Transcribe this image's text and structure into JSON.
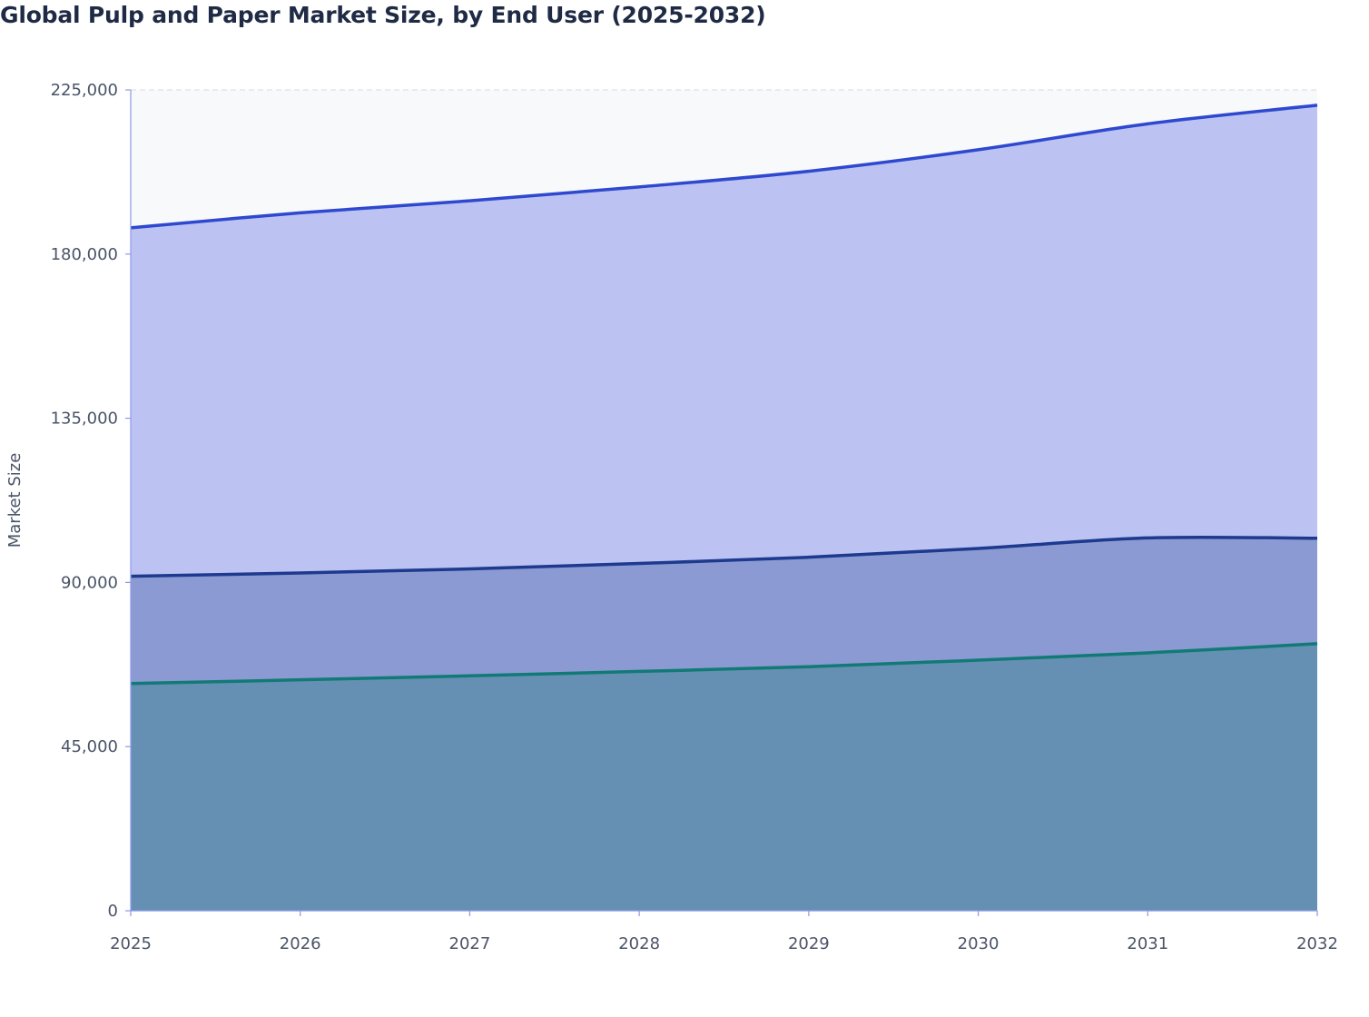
{
  "chart_data": {
    "type": "area",
    "stacked": true,
    "title": "Global Pulp and Paper Market Size, by End User (2025-2032)",
    "xlabel": "",
    "ylabel": "Market Size",
    "x": [
      "2025",
      "2026",
      "2027",
      "2028",
      "2029",
      "2030",
      "2031",
      "2032"
    ],
    "ylim": [
      0,
      225000
    ],
    "yticks": [
      0,
      45000,
      90000,
      135000,
      180000,
      225000
    ],
    "ytick_labels": [
      "0",
      "45,000",
      "90,000",
      "135,000",
      "180,000",
      "225,000"
    ],
    "grid": true,
    "legend": "none",
    "series": [
      {
        "values": [
          62300,
          63300,
          64400,
          65600,
          66900,
          68700,
          70700,
          73200
        ],
        "line_color": "#127a76",
        "fill_color": "#6590b3"
      },
      {
        "values": [
          29400,
          29300,
          29300,
          29600,
          30000,
          30600,
          31500,
          28900
        ],
        "line_color": "#1d3a8f",
        "fill_color": "#8b9ad2"
      },
      {
        "values": [
          95500,
          98700,
          100900,
          103200,
          105800,
          109300,
          113500,
          118700
        ],
        "line_color": "#2e49cf",
        "fill_color": "#bcc3f2"
      }
    ],
    "plot_background": "#f8f9fb",
    "gridline_color": "#dde1ea",
    "axis_line_color": "#8e99e6",
    "tick_color": "#4a5468"
  }
}
